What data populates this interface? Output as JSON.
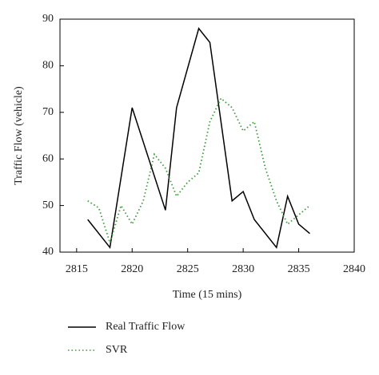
{
  "chart_data": {
    "type": "line",
    "x_label": "Time (15 mins)",
    "y_label": "Traffic Flow (vehicle)",
    "xlim": [
      2813.5,
      2840
    ],
    "xticks": [
      2815,
      2820,
      2825,
      2830,
      2835,
      2840
    ],
    "ylim": [
      40,
      90
    ],
    "yticks": [
      40,
      50,
      60,
      70,
      80,
      90
    ],
    "series": [
      {
        "name": "Real Traffic Flow",
        "color": "#000000",
        "dash": "solid",
        "x": [
          2816,
          2818,
          2820,
          2823,
          2824,
          2826,
          2827,
          2829,
          2830,
          2831,
          2833,
          2834,
          2835,
          2836
        ],
        "values": [
          47,
          41,
          71,
          49,
          71,
          88,
          85,
          51,
          53,
          47,
          41,
          52,
          46,
          44
        ]
      },
      {
        "name": "SVR",
        "color": "#3a9a3a",
        "dash": "dotted",
        "x": [
          2816,
          2817,
          2818,
          2819,
          2820,
          2821,
          2822,
          2823,
          2824,
          2825,
          2826,
          2827,
          2828,
          2829,
          2830,
          2831,
          2832,
          2833,
          2834,
          2835,
          2836
        ],
        "values": [
          51,
          49.5,
          42,
          50,
          46,
          51,
          61,
          58,
          52,
          55,
          57,
          68,
          73,
          71,
          66,
          68,
          58,
          51,
          46,
          48,
          50
        ]
      }
    ]
  }
}
